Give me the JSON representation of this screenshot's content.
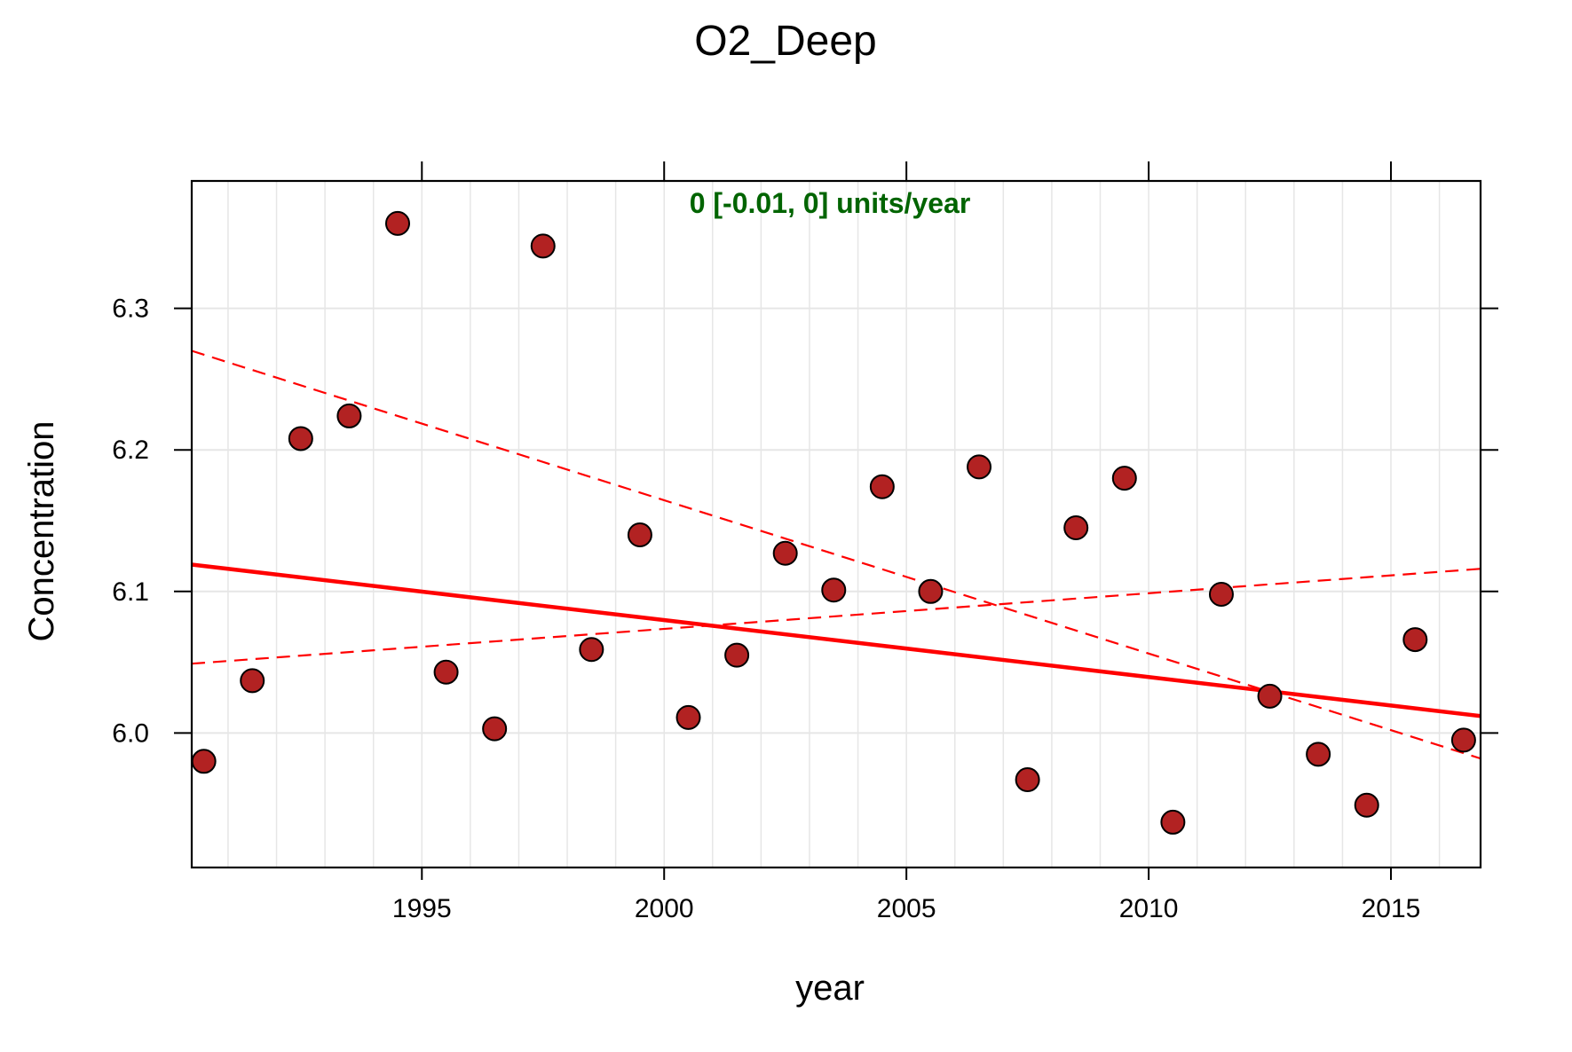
{
  "chart_data": {
    "type": "scatter",
    "title": "O2_Deep",
    "xlabel": "year",
    "ylabel": "Concentration",
    "xlim": [
      1990.25,
      2016.85
    ],
    "ylim": [
      5.905,
      6.39
    ],
    "grid": true,
    "x_ticks": [
      1995,
      2000,
      2005,
      2010,
      2015
    ],
    "y_ticks": [
      6.0,
      6.1,
      6.2,
      6.3
    ],
    "x_tick_labels": [
      "1995",
      "2000",
      "2005",
      "2010",
      "2015"
    ],
    "y_tick_labels": [
      "6.0",
      "6.1",
      "6.2",
      "6.3"
    ],
    "annotation": "0 [-0.01, 0] units/year",
    "colors": {
      "points": "#b22222",
      "trend": "#ff0000",
      "annotation": "#006400",
      "grid": "#e6e6e6",
      "axis": "#000000"
    },
    "points": {
      "x": [
        1990.5,
        1991.5,
        1992.5,
        1993.5,
        1994.5,
        1995.5,
        1996.5,
        1997.5,
        1998.5,
        1999.5,
        2000.5,
        2001.5,
        2002.5,
        2003.5,
        2004.5,
        2005.5,
        2006.5,
        2007.5,
        2008.5,
        2009.5,
        2010.5,
        2011.5,
        2012.5,
        2013.5,
        2014.5,
        2015.5,
        2016.5
      ],
      "y": [
        5.98,
        6.037,
        6.208,
        6.224,
        6.36,
        6.043,
        6.003,
        6.344,
        6.059,
        6.14,
        6.011,
        6.055,
        6.127,
        6.101,
        6.174,
        6.1,
        6.188,
        5.967,
        6.145,
        6.18,
        5.937,
        6.098,
        6.026,
        5.985,
        5.949,
        6.066,
        5.995
      ]
    },
    "lines": [
      {
        "x": [
          1990.25,
          2016.85
        ],
        "y": [
          6.119,
          6.012
        ],
        "style": "solid"
      },
      {
        "x": [
          1990.25,
          2016.85
        ],
        "y": [
          6.27,
          5.982
        ],
        "style": "dashed"
      },
      {
        "x": [
          1990.25,
          2016.85
        ],
        "y": [
          6.049,
          6.116
        ],
        "style": "dashed"
      }
    ]
  }
}
